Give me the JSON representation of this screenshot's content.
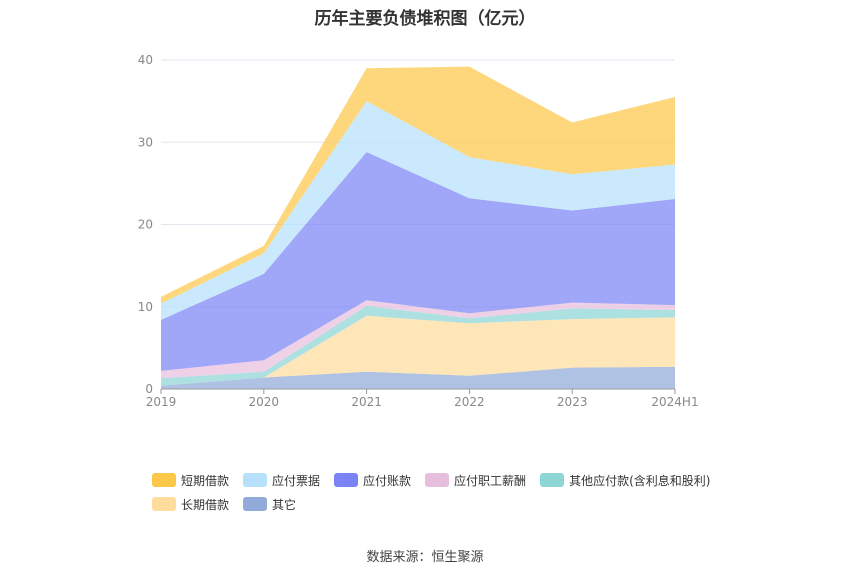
{
  "chart_data": {
    "type": "area",
    "title": "历年主要负债堆积图（亿元）",
    "categories": [
      "2019",
      "2020",
      "2021",
      "2022",
      "2023",
      "2024H1"
    ],
    "ylim": [
      0,
      40
    ],
    "yticks": [
      0,
      10,
      20,
      30,
      40
    ],
    "grid": true,
    "legend_position": "bottom",
    "series": [
      {
        "name": "其它",
        "color": "#92aad8",
        "values": [
          0.4,
          1.4,
          2.1,
          1.6,
          2.6,
          2.7
        ]
      },
      {
        "name": "长期借款",
        "color": "#fddc9c",
        "values": [
          0.0,
          0.0,
          6.8,
          6.4,
          5.9,
          6.0
        ]
      },
      {
        "name": "其他应付款(含利息和股利)",
        "color": "#8ed6d6",
        "values": [
          0.9,
          0.7,
          1.2,
          0.6,
          1.3,
          0.9
        ]
      },
      {
        "name": "应付职工薪酬",
        "color": "#e8bede",
        "values": [
          0.9,
          1.4,
          0.7,
          0.6,
          0.7,
          0.6
        ]
      },
      {
        "name": "应付账款",
        "color": "#7b83f5",
        "values": [
          6.2,
          10.5,
          18.0,
          14.0,
          11.2,
          12.9
        ]
      },
      {
        "name": "应付票据",
        "color": "#b6e1fb",
        "values": [
          2.0,
          2.5,
          6.2,
          5.0,
          4.4,
          4.2
        ]
      },
      {
        "name": "短期借款",
        "color": "#fdc84a",
        "values": [
          0.8,
          0.9,
          4.0,
          11.0,
          6.3,
          8.2
        ]
      }
    ],
    "legend_order": [
      "短期借款",
      "应付票据",
      "应付账款",
      "应付职工薪酬",
      "其他应付款(含利息和股利)",
      "长期借款",
      "其它"
    ]
  },
  "source_text": "数据来源：恒生聚源"
}
